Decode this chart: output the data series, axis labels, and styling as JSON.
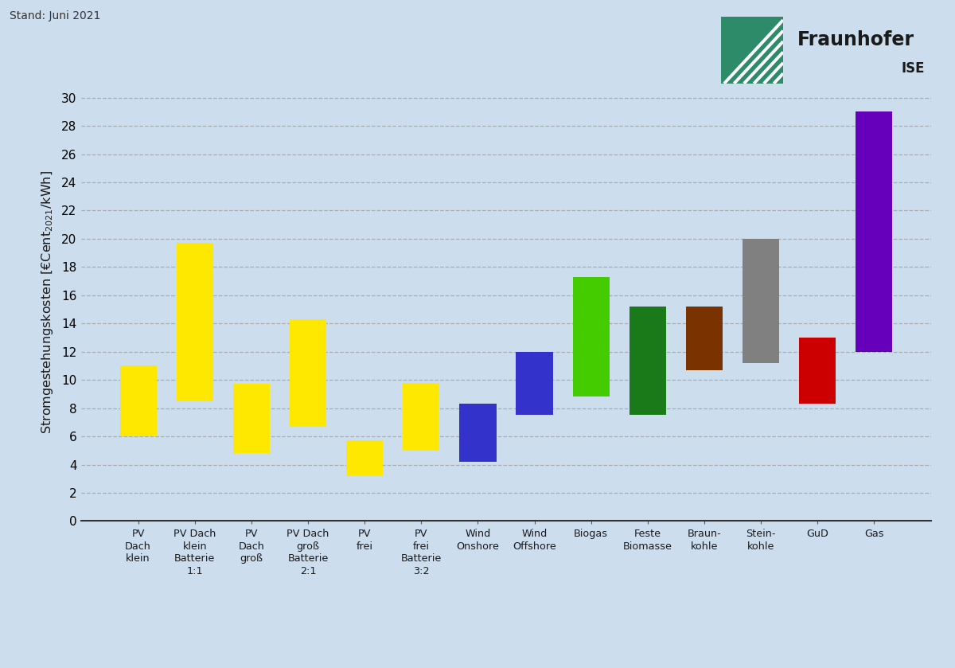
{
  "categories": [
    "PV\nDach\nklein",
    "PV Dach\nklein\nBatterie\n1:1",
    "PV\nDach\ngroß",
    "PV Dach\ngroß\nBatterie\n2:1",
    "PV\nfrei",
    "PV\nfrei\nBatterie\n3:2",
    "Wind\nOnshore",
    "Wind\nOffshore",
    "Biogas",
    "Feste\nBiomasse",
    "Braun-\nkohle",
    "Stein-\nkohle",
    "GuD",
    "Gas"
  ],
  "bottoms": [
    6.0,
    8.5,
    4.8,
    6.7,
    3.2,
    5.0,
    4.2,
    7.5,
    8.8,
    7.5,
    10.7,
    11.2,
    8.3,
    12.0
  ],
  "tops": [
    11.0,
    19.7,
    9.7,
    14.3,
    5.7,
    9.8,
    8.3,
    12.0,
    17.3,
    15.2,
    15.2,
    20.0,
    13.0,
    29.0
  ],
  "colors": [
    "#FFE800",
    "#FFE800",
    "#FFE800",
    "#FFE800",
    "#FFE800",
    "#FFE800",
    "#3333CC",
    "#3333CC",
    "#44CC00",
    "#1A7A1A",
    "#7A3300",
    "#808080",
    "#CC0000",
    "#6600BB"
  ],
  "ylim": [
    0,
    31
  ],
  "yticks": [
    0,
    2,
    4,
    6,
    8,
    10,
    12,
    14,
    16,
    18,
    20,
    22,
    24,
    26,
    28,
    30
  ],
  "background_color": "#CCDDED",
  "grid_color": "#999999",
  "stand_text": "Stand: Juni 2021",
  "bar_width": 0.65,
  "fraunhofer_green": "#2E8B6A",
  "fraunhofer_text_color": "#1A1A1A"
}
